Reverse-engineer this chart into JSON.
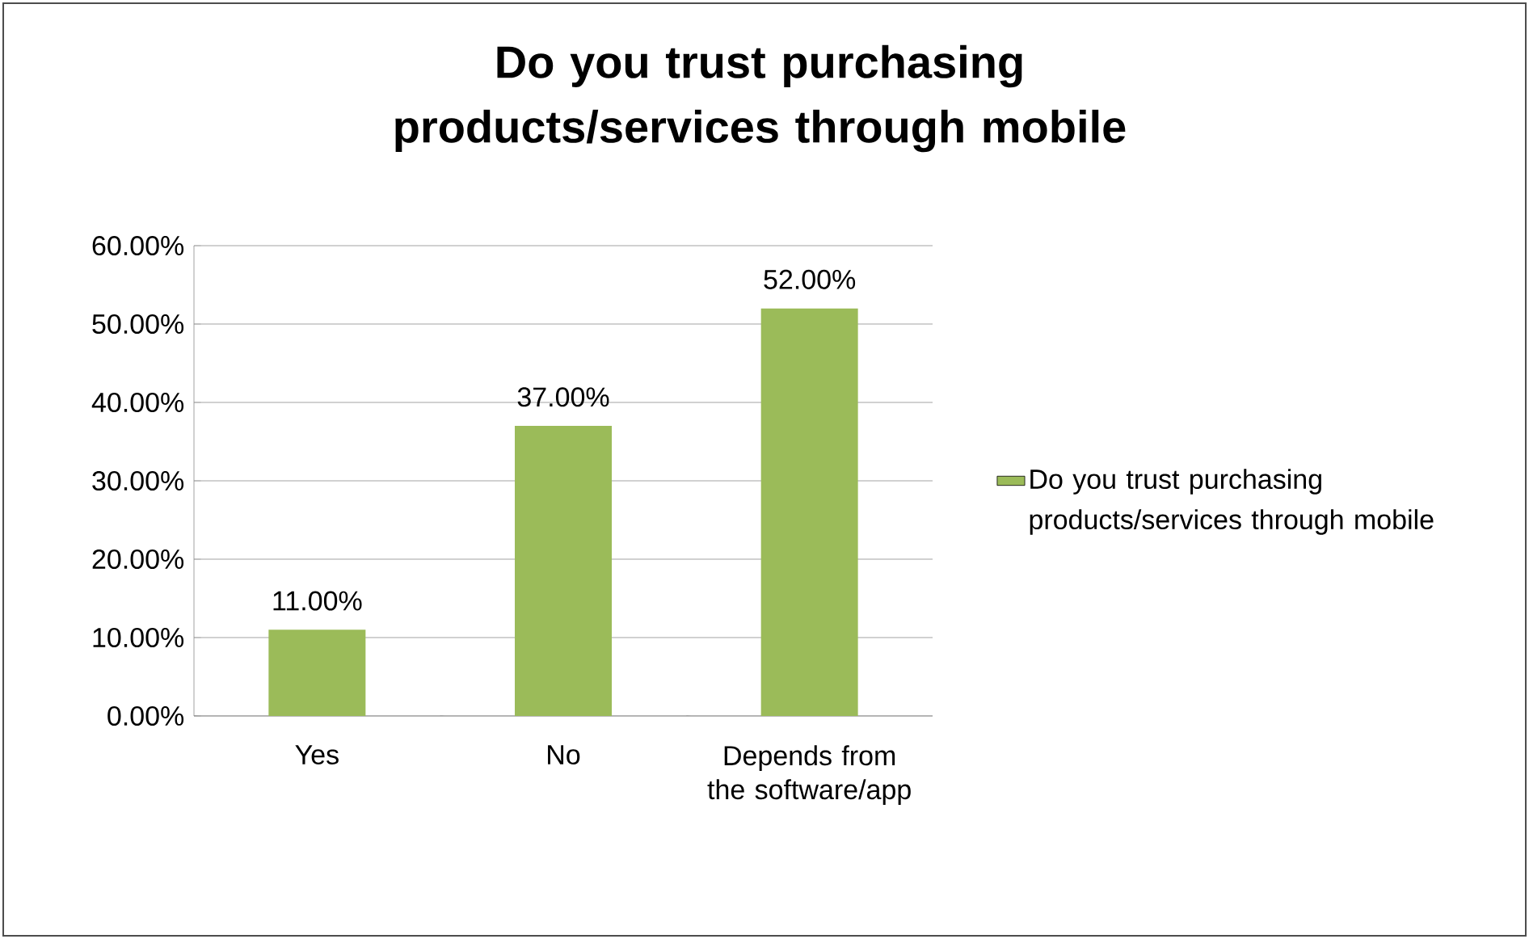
{
  "chart_data": {
    "type": "bar",
    "title": "Do you trust purchasing products/services through mobile",
    "categories": [
      "Yes",
      "No",
      "Depends from the software/app"
    ],
    "series": [
      {
        "name": "Do you trust purchasing products/services through mobile",
        "color": "#9bbb59",
        "values": [
          11,
          37,
          52
        ]
      }
    ],
    "value_labels": [
      "11.00%",
      "37.00%",
      "52.00%"
    ],
    "ylim": [
      0,
      60
    ],
    "yticks": [
      {
        "value": 0,
        "label": "0.00%"
      },
      {
        "value": 10,
        "label": "10.00%"
      },
      {
        "value": 20,
        "label": "20.00%"
      },
      {
        "value": 30,
        "label": "30.00%"
      },
      {
        "value": 40,
        "label": "40.00%"
      },
      {
        "value": 50,
        "label": "50.00%"
      },
      {
        "value": 60,
        "label": "60.00%"
      }
    ],
    "grid": "y",
    "legend": "right"
  }
}
